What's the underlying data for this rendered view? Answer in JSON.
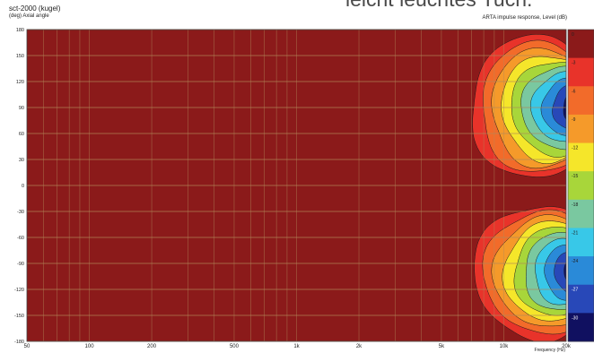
{
  "caption_fragment": "leicht leuchtes Tuch.",
  "chart_data": {
    "type": "heatmap",
    "title": "sct-2000 (kugel)",
    "ylabel": "(deg)  Axial angle",
    "colorbar_label": "ARTA impulse response, Level  (dB)",
    "xlabel": "Frequency  (Hz)",
    "x_scale": "log",
    "xlim": [
      50,
      20000
    ],
    "ylim": [
      -180,
      180
    ],
    "x_ticks": [
      {
        "value": 50,
        "label": "50"
      },
      {
        "value": 100,
        "label": "100"
      },
      {
        "value": 200,
        "label": "200"
      },
      {
        "value": 500,
        "label": "500"
      },
      {
        "value": 1000,
        "label": "1k"
      },
      {
        "value": 2000,
        "label": "2k"
      },
      {
        "value": 5000,
        "label": "5k"
      },
      {
        "value": 10000,
        "label": "10k"
      },
      {
        "value": 20000,
        "label": "20k"
      }
    ],
    "y_ticks": [
      180,
      150,
      120,
      90,
      60,
      30,
      0,
      -30,
      -60,
      -90,
      -120,
      -150,
      -180
    ],
    "grid": true,
    "colorbar": [
      {
        "level": 0,
        "label": "0",
        "color": "#8b1a1a"
      },
      {
        "level": -3,
        "label": "-3",
        "color": "#e8332a"
      },
      {
        "level": -6,
        "label": "-6",
        "color": "#f26b2a"
      },
      {
        "level": -9,
        "label": "-9",
        "color": "#f59a2a"
      },
      {
        "level": -12,
        "label": "-12",
        "color": "#f5e62a"
      },
      {
        "level": -15,
        "label": "-15",
        "color": "#a8d63a"
      },
      {
        "level": -18,
        "label": "-18",
        "color": "#7ac8a0"
      },
      {
        "level": -21,
        "label": "-21",
        "color": "#38c8e8"
      },
      {
        "level": -24,
        "label": "-24",
        "color": "#2a8ad8"
      },
      {
        "level": -27,
        "label": "-27",
        "color": "#2848b8"
      },
      {
        "level": -30,
        "label": "-30",
        "color": "#101060"
      }
    ],
    "lobes": [
      {
        "name": "upper",
        "angle_min": 12,
        "angle_max": 180,
        "center_angle": 90,
        "onset_freq": 6500
      },
      {
        "name": "lower",
        "angle_min": -180,
        "angle_max": -22,
        "center_angle": -100,
        "onset_freq": 6800
      }
    ]
  }
}
